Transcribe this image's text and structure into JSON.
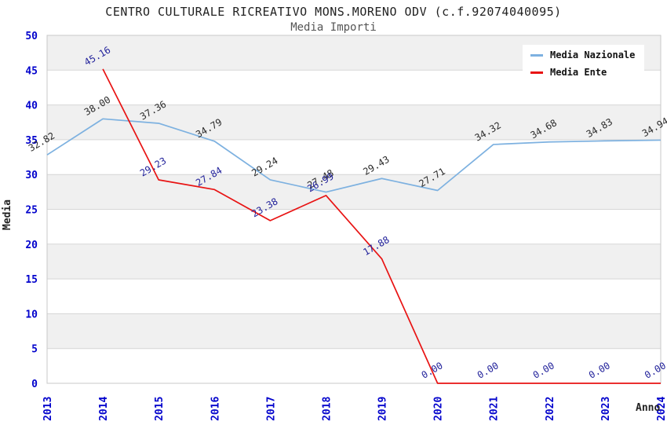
{
  "header": {
    "title": "CENTRO CULTURALE RICREATIVO MONS.MORENO ODV (c.f.92074040095)",
    "subtitle": "Media Importi"
  },
  "axes": {
    "x_label": "Anno",
    "y_label": "Media",
    "tick_color": "#0202cc"
  },
  "legend": {
    "items": [
      {
        "label": "Media Nazionale",
        "color": "#7db1e0"
      },
      {
        "label": "Media Ente",
        "color": "#e81313"
      }
    ]
  },
  "chart_data": {
    "type": "line",
    "title": "CENTRO CULTURALE RICREATIVO MONS.MORENO ODV (c.f.92074040095)",
    "subtitle": "Media Importi",
    "xlabel": "Anno",
    "ylabel": "Media",
    "categories": [
      "2013",
      "2014",
      "2015",
      "2016",
      "2017",
      "2018",
      "2019",
      "2020",
      "2021",
      "2022",
      "2023",
      "2024"
    ],
    "series": [
      {
        "name": "Media Nazionale",
        "color": "#7db1e0",
        "label_color": "#2a2a2a",
        "values": [
          32.82,
          38.0,
          37.36,
          34.79,
          29.24,
          27.48,
          29.43,
          27.71,
          34.32,
          34.68,
          34.83,
          34.94
        ]
      },
      {
        "name": "Media Ente",
        "color": "#e81313",
        "label_color": "#22229b",
        "values": [
          null,
          45.16,
          29.23,
          27.84,
          23.38,
          26.99,
          17.88,
          0.0,
          0.0,
          0.0,
          0.0,
          0.0
        ]
      }
    ],
    "ylim": [
      0,
      50
    ],
    "y_tick_step": 5,
    "grid": true,
    "band_fill": "#f0f0f0",
    "grid_color": "#d6d6d6",
    "border_color": "#c8c8c8",
    "legend_position": "top-right"
  }
}
